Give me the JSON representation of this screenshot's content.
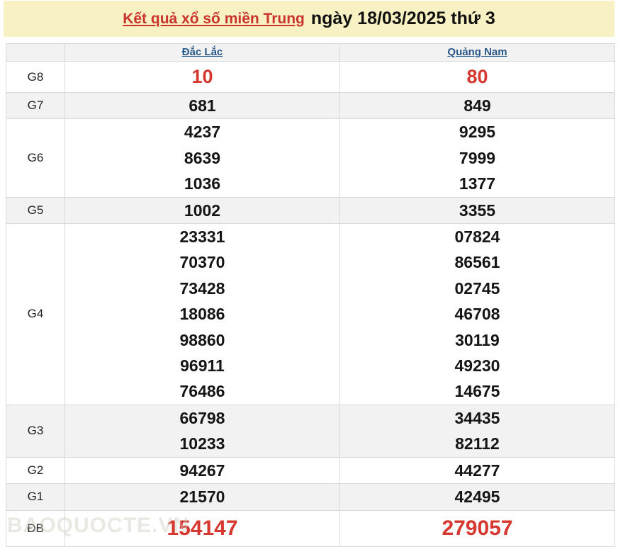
{
  "header": {
    "region_link": "Kết quả xổ số miền Trung",
    "date_text": "ngày 18/03/2025 thứ 3"
  },
  "table": {
    "columns": [
      "Đắc Lắc",
      "Quảng Nam"
    ],
    "rows": [
      {
        "label": "G8",
        "dac_lac": [
          "10"
        ],
        "quang_nam": [
          "80"
        ],
        "highlight": true
      },
      {
        "label": "G7",
        "dac_lac": [
          "681"
        ],
        "quang_nam": [
          "849"
        ],
        "highlight": false
      },
      {
        "label": "G6",
        "dac_lac": [
          "4237",
          "8639",
          "1036"
        ],
        "quang_nam": [
          "9295",
          "7999",
          "1377"
        ],
        "highlight": false
      },
      {
        "label": "G5",
        "dac_lac": [
          "1002"
        ],
        "quang_nam": [
          "3355"
        ],
        "highlight": false
      },
      {
        "label": "G4",
        "dac_lac": [
          "23331",
          "70370",
          "73428",
          "18086",
          "98860",
          "96911",
          "76486"
        ],
        "quang_nam": [
          "07824",
          "86561",
          "02745",
          "46708",
          "30119",
          "49230",
          "14675"
        ],
        "highlight": false
      },
      {
        "label": "G3",
        "dac_lac": [
          "66798",
          "10233"
        ],
        "quang_nam": [
          "34435",
          "82112"
        ],
        "highlight": false
      },
      {
        "label": "G2",
        "dac_lac": [
          "94267"
        ],
        "quang_nam": [
          "44277"
        ],
        "highlight": false
      },
      {
        "label": "G1",
        "dac_lac": [
          "21570"
        ],
        "quang_nam": [
          "42495"
        ],
        "highlight": false
      },
      {
        "label": "ĐB",
        "dac_lac": [
          "154147"
        ],
        "quang_nam": [
          "279057"
        ],
        "highlight": true
      }
    ]
  },
  "watermark": "BAOQUOCTE.VN",
  "colors": {
    "banner_yellow": "#f8f1c3",
    "title_red": "#c9342c",
    "number_red": "#d6372e",
    "link_blue": "#28578a",
    "stripe_gray": "#f2f2f2",
    "border_gray": "#d9d9d9"
  }
}
